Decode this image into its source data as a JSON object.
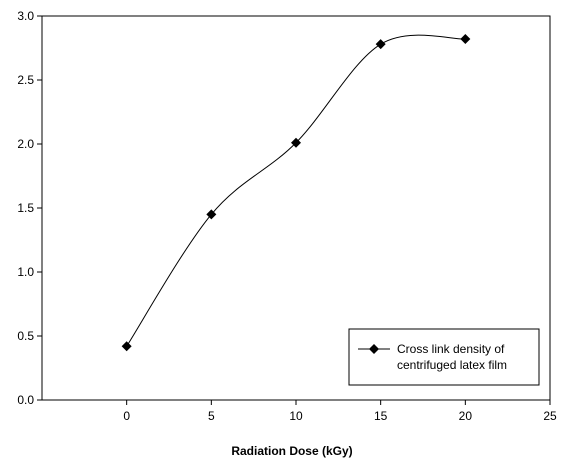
{
  "chart_data": {
    "type": "line",
    "title": "",
    "xlabel": "Radiation Dose (kGy)",
    "ylabel": "",
    "xlim": [
      -5,
      25
    ],
    "ylim": [
      0.0,
      3.0
    ],
    "xticks": [
      0,
      5,
      10,
      15,
      20,
      25
    ],
    "xtick_labels": [
      "0",
      "5",
      "10",
      "15",
      "20",
      "25"
    ],
    "yticks": [
      0.0,
      0.5,
      1.0,
      1.5,
      2.0,
      2.5,
      3.0
    ],
    "ytick_labels": [
      "0.0",
      "0.5",
      "1.0",
      "1.5",
      "2.0",
      "2.5",
      "3.0"
    ],
    "grid": false,
    "legend_position": "bottom-right",
    "smooth": true,
    "series": [
      {
        "name": "Cross link density of centrifuged latex film",
        "legend_lines": [
          "Cross link density of",
          "centrifuged latex film"
        ],
        "marker": "diamond",
        "color": "#000000",
        "x": [
          0,
          5,
          10,
          15,
          20
        ],
        "y": [
          0.42,
          1.45,
          2.01,
          2.78,
          2.82
        ]
      }
    ]
  }
}
